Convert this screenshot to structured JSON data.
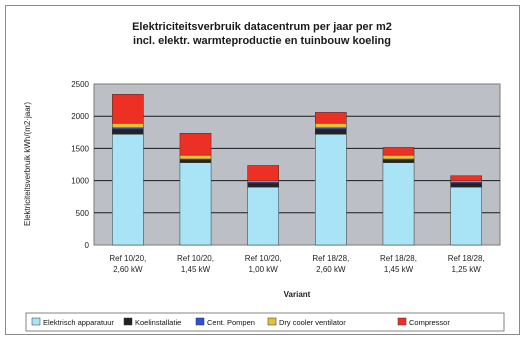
{
  "chart_data": {
    "type": "bar",
    "stacked": true,
    "title": "Elektriciteitsverbruik datacentrum per jaar per m2",
    "subtitle": "incl. elektr. warmteproductie en tuinbouw koeling",
    "ylabel": "Elektriciteitsverbruik kWh/(m2·jaar)",
    "xlabel": "Variant",
    "ylim": [
      0,
      2500
    ],
    "yticks": [
      "0",
      "500",
      "1000",
      "1500",
      "2000",
      "2500"
    ],
    "grid": true,
    "legend_position": "bottom",
    "categories": [
      [
        "Ref 10/20,",
        "2,60 kW"
      ],
      [
        "Ref 10/20,",
        "1,45 kW"
      ],
      [
        "Ref 10/20,",
        "1,00 kW"
      ],
      [
        "Ref 18/28,",
        "2,60 kW"
      ],
      [
        "Ref 18/28,",
        "1,45 kW"
      ],
      [
        "Ref 18/28,",
        "1,25 kW"
      ]
    ],
    "series": [
      {
        "name": "Elektrisch apparatuur",
        "color": "#a9e4f6",
        "values": [
          1720,
          1280,
          900,
          1720,
          1280,
          900
        ]
      },
      {
        "name": "Koelinstallatie",
        "color": "#222222",
        "values": [
          80,
          40,
          60,
          80,
          40,
          60
        ]
      },
      {
        "name": "Cent. Pompen",
        "color": "#3050d8",
        "values": [
          20,
          15,
          15,
          20,
          15,
          15
        ]
      },
      {
        "name": "Dry cooler ventilator",
        "color": "#e2c237",
        "values": [
          70,
          60,
          20,
          70,
          60,
          20
        ]
      },
      {
        "name": "Compressor",
        "color": "#ec3024",
        "values": [
          450,
          340,
          240,
          170,
          120,
          80
        ]
      }
    ]
  }
}
